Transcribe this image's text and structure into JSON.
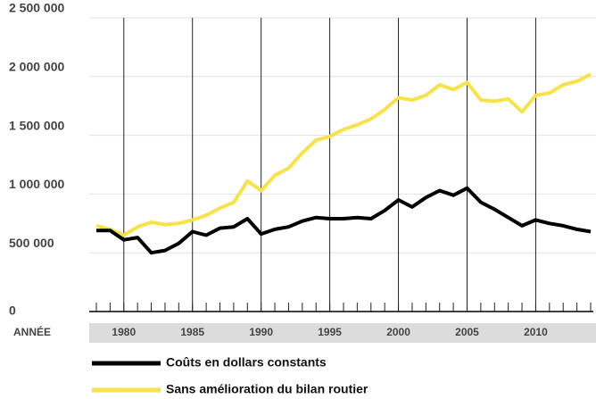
{
  "chart_data": {
    "type": "line",
    "x_label": "ANNÉE",
    "x": [
      1978,
      1979,
      1980,
      1981,
      1982,
      1983,
      1984,
      1985,
      1986,
      1987,
      1988,
      1989,
      1990,
      1991,
      1992,
      1993,
      1994,
      1995,
      1996,
      1997,
      1998,
      1999,
      2000,
      2001,
      2002,
      2003,
      2004,
      2005,
      2006,
      2007,
      2008,
      2009,
      2010,
      2011,
      2012,
      2013,
      2014
    ],
    "series": [
      {
        "name": "Coûts en dollars constants",
        "color": "#000000",
        "values": [
          690000,
          690000,
          610000,
          630000,
          500000,
          520000,
          580000,
          680000,
          650000,
          710000,
          720000,
          790000,
          660000,
          700000,
          720000,
          770000,
          800000,
          790000,
          790000,
          800000,
          790000,
          860000,
          950000,
          890000,
          970000,
          1030000,
          990000,
          1050000,
          930000,
          870000,
          800000,
          730000,
          780000,
          750000,
          730000,
          700000,
          680000
        ]
      },
      {
        "name": "Sans amélioration du bilan routier",
        "color": "#f7e24a",
        "values": [
          730000,
          700000,
          650000,
          720000,
          760000,
          740000,
          750000,
          780000,
          820000,
          880000,
          930000,
          1110000,
          1030000,
          1160000,
          1220000,
          1350000,
          1460000,
          1490000,
          1550000,
          1590000,
          1640000,
          1720000,
          1820000,
          1800000,
          1840000,
          1930000,
          1890000,
          1950000,
          1800000,
          1790000,
          1810000,
          1700000,
          1840000,
          1860000,
          1930000,
          1960000,
          2020000
        ]
      }
    ],
    "xlim": [
      1978,
      2014
    ],
    "xticks": [
      1980,
      1985,
      1990,
      1995,
      2000,
      2005,
      2010
    ],
    "ylim": [
      0,
      2500000
    ],
    "yticks": [
      0,
      {
        "value": 500000,
        "label": "500 000"
      },
      {
        "value": 1000000,
        "label": "1 000 000"
      },
      {
        "value": 1500000,
        "label": "1 500 000"
      },
      {
        "value": 2000000,
        "label": "2 000 000"
      },
      {
        "value": 2500000,
        "label": "2 500 000"
      }
    ],
    "grid": true
  }
}
